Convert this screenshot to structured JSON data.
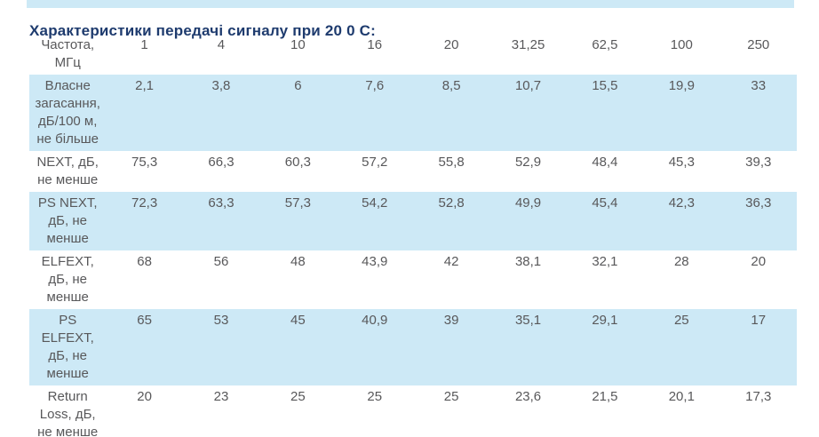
{
  "title": "Характеристики передачі сигналу при 20 0 С:",
  "colors": {
    "title_navy": "#1e3b6e",
    "row_highlight_blue": "#cde9f6",
    "table_text_gray": "#58585a",
    "background": "#ffffff"
  },
  "table": {
    "rows": [
      {
        "label": "Частота, МГц",
        "highlight": false,
        "values": [
          "1",
          "4",
          "10",
          "16",
          "20",
          "31,25",
          "62,5",
          "100",
          "250"
        ]
      },
      {
        "label": "Власне загасання, дБ/100 м, не більше",
        "highlight": true,
        "values": [
          "2,1",
          "3,8",
          "6",
          "7,6",
          "8,5",
          "10,7",
          "15,5",
          "19,9",
          "33"
        ]
      },
      {
        "label": "NEXT, дБ, не менше",
        "highlight": false,
        "values": [
          "75,3",
          "66,3",
          "60,3",
          "57,2",
          "55,8",
          "52,9",
          "48,4",
          "45,3",
          "39,3"
        ]
      },
      {
        "label": "PS NEXT, дБ, не менше",
        "highlight": true,
        "values": [
          "72,3",
          "63,3",
          "57,3",
          "54,2",
          "52,8",
          "49,9",
          "45,4",
          "42,3",
          "36,3"
        ]
      },
      {
        "label": "ELFEXT, дБ, не менше",
        "highlight": false,
        "values": [
          "68",
          "56",
          "48",
          "43,9",
          "42",
          "38,1",
          "32,1",
          "28",
          "20"
        ]
      },
      {
        "label": "PS ELFEXT, дБ, не менше",
        "highlight": true,
        "values": [
          "65",
          "53",
          "45",
          "40,9",
          "39",
          "35,1",
          "29,1",
          "25",
          "17"
        ]
      },
      {
        "label": "Return Loss, дБ, не менше",
        "highlight": false,
        "values": [
          "20",
          "23",
          "25",
          "25",
          "25",
          "23,6",
          "21,5",
          "20,1",
          "17,3"
        ]
      }
    ]
  },
  "chart_data": {
    "type": "table",
    "title": "Характеристики передачі сигналу при 20 0 С:",
    "columns": [
      "Частота, МГц",
      "1",
      "4",
      "10",
      "16",
      "20",
      "31,25",
      "62,5",
      "100",
      "250"
    ],
    "rows": [
      [
        "Власне загасання, дБ/100 м, не більше",
        "2,1",
        "3,8",
        "6",
        "7,6",
        "8,5",
        "10,7",
        "15,5",
        "19,9",
        "33"
      ],
      [
        "NEXT, дБ, не менше",
        "75,3",
        "66,3",
        "60,3",
        "57,2",
        "55,8",
        "52,9",
        "48,4",
        "45,3",
        "39,3"
      ],
      [
        "PS NEXT, дБ, не менше",
        "72,3",
        "63,3",
        "57,3",
        "54,2",
        "52,8",
        "49,9",
        "45,4",
        "42,3",
        "36,3"
      ],
      [
        "ELFEXT, дБ, не менше",
        "68",
        "56",
        "48",
        "43,9",
        "42",
        "38,1",
        "32,1",
        "28",
        "20"
      ],
      [
        "PS ELFEXT, дБ, не менше",
        "65",
        "53",
        "45",
        "40,9",
        "39",
        "35,1",
        "29,1",
        "25",
        "17"
      ],
      [
        "Return Loss, дБ, не менше",
        "20",
        "23",
        "25",
        "25",
        "25",
        "23,6",
        "21,5",
        "20,1",
        "17,3"
      ]
    ]
  }
}
